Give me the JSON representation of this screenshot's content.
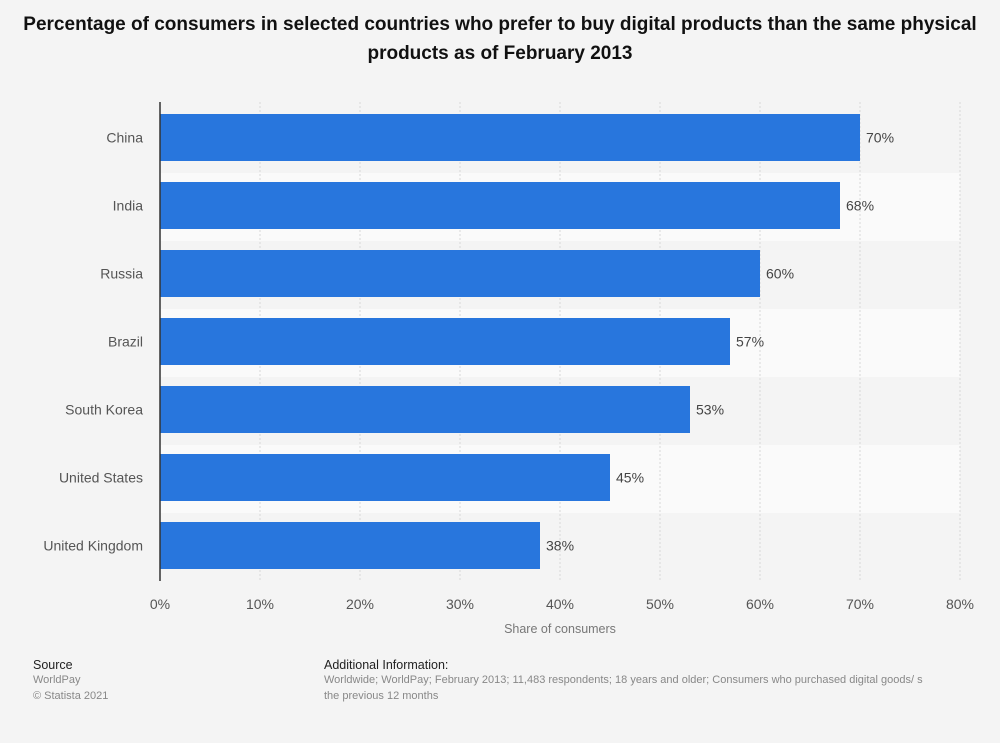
{
  "chart_data": {
    "type": "bar",
    "orientation": "horizontal",
    "title": "Percentage of consumers in selected countries who prefer to buy digital products than the same physical products as of February 2013",
    "categories": [
      "China",
      "India",
      "Russia",
      "Brazil",
      "South Korea",
      "United States",
      "United Kingdom"
    ],
    "values": [
      70,
      68,
      60,
      57,
      53,
      45,
      38
    ],
    "value_labels": [
      "70%",
      "68%",
      "60%",
      "57%",
      "53%",
      "45%",
      "38%"
    ],
    "xlabel": "Share of consumers",
    "ylabel": "",
    "xlim": [
      0,
      80
    ],
    "ticks": [
      0,
      10,
      20,
      30,
      40,
      50,
      60,
      70,
      80
    ],
    "tick_labels": [
      "0%",
      "10%",
      "20%",
      "30%",
      "40%",
      "50%",
      "60%",
      "70%",
      "80%"
    ],
    "grid": true,
    "bar_color": "#2876dd"
  },
  "footer": {
    "source_label": "Source",
    "source": "WorldPay",
    "copyright": "© Statista 2021",
    "info_label": "Additional Information:",
    "info_line1": "Worldwide; WorldPay; February 2013; 11,483 respondents; 18 years and older; Consumers who purchased digital goods/ s",
    "info_line2": "the previous 12 months"
  }
}
